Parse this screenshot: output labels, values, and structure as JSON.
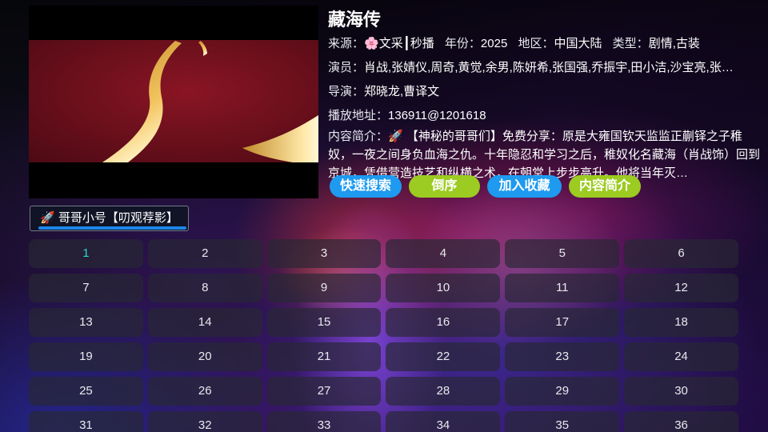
{
  "colors": {
    "accent-blue": "#1e9af0",
    "accent-green": "#9ccb21",
    "active-episode": "#2bd9c9",
    "tab-underline": "#1d86e8",
    "poster-red": "#7d1220",
    "poster-gold": "#ffd77a"
  },
  "detail": {
    "title": "藏海传",
    "meta": [
      {
        "label": "来源：",
        "value": "🌸文采┃秒播"
      },
      {
        "label": "年份：",
        "value": "2025"
      },
      {
        "label": "地区：",
        "value": "中国大陆"
      },
      {
        "label": "类型：",
        "value": "剧情,古装"
      }
    ],
    "actors_label": "演员：",
    "actors": "肖战,张婧仪,周奇,黄觉,余男,陈妍希,张国强,乔振宇,田小洁,沙宝亮,张…",
    "director_label": "导演：",
    "director": "郑晓龙,曹译文",
    "play_url_label": "播放地址：",
    "play_url": "136911@1201618",
    "desc_label": "内容简介：",
    "desc": "🚀 【神秘的哥哥们】免费分享：原是大雍国钦天监监正蒯铎之子稚奴，一夜之间身负血海之仇。十年隐忍和学习之后，稚奴化名藏海（肖战饰）回到京城，凭借营造技艺和纵横之术，在朝堂上步步高升。他将当年灭…"
  },
  "buttons": [
    {
      "label": "快速搜索",
      "style": "blue"
    },
    {
      "label": "倒序",
      "style": "green"
    },
    {
      "label": "加入收藏",
      "style": "blue"
    },
    {
      "label": "内容简介",
      "style": "green"
    }
  ],
  "tab": {
    "label": "🚀 哥哥小号【叨观荐影】"
  },
  "episodes": {
    "active_index": 0,
    "items": [
      "1",
      "2",
      "3",
      "4",
      "5",
      "6",
      "7",
      "8",
      "9",
      "10",
      "11",
      "12",
      "13",
      "14",
      "15",
      "16",
      "17",
      "18",
      "19",
      "20",
      "21",
      "22",
      "23",
      "24",
      "25",
      "26",
      "27",
      "28",
      "29",
      "30",
      "31",
      "32",
      "33",
      "34",
      "35",
      "36"
    ]
  }
}
